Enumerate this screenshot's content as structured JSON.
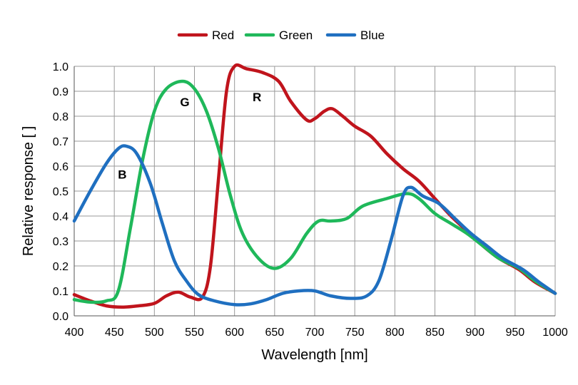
{
  "chart_data": {
    "type": "line",
    "title": "",
    "xlabel": "Wavelength [nm]",
    "ylabel": "Relative response [ ]",
    "xlim": [
      400,
      1000
    ],
    "ylim": [
      0,
      1.0
    ],
    "x_ticks": [
      "400",
      "450",
      "500",
      "550",
      "600",
      "650",
      "700",
      "750",
      "800",
      "850",
      "900",
      "950",
      "1000"
    ],
    "y_ticks": [
      "0.0",
      "0.1",
      "0.2",
      "0.3",
      "0.4",
      "0.5",
      "0.6",
      "0.7",
      "0.8",
      "0.9",
      "1.0"
    ],
    "grid": true,
    "legend_position": "top",
    "series": [
      {
        "name": "Red",
        "color": "#c0141c",
        "points": [
          [
            400,
            0.085
          ],
          [
            420,
            0.06
          ],
          [
            440,
            0.04
          ],
          [
            460,
            0.035
          ],
          [
            480,
            0.04
          ],
          [
            500,
            0.05
          ],
          [
            515,
            0.08
          ],
          [
            530,
            0.095
          ],
          [
            545,
            0.075
          ],
          [
            560,
            0.075
          ],
          [
            570,
            0.2
          ],
          [
            580,
            0.55
          ],
          [
            590,
            0.9
          ],
          [
            600,
            1.0
          ],
          [
            615,
            0.99
          ],
          [
            635,
            0.975
          ],
          [
            655,
            0.94
          ],
          [
            670,
            0.86
          ],
          [
            690,
            0.785
          ],
          [
            700,
            0.79
          ],
          [
            712,
            0.82
          ],
          [
            722,
            0.83
          ],
          [
            735,
            0.8
          ],
          [
            750,
            0.76
          ],
          [
            770,
            0.72
          ],
          [
            790,
            0.65
          ],
          [
            810,
            0.59
          ],
          [
            830,
            0.54
          ],
          [
            850,
            0.47
          ],
          [
            870,
            0.4
          ],
          [
            890,
            0.34
          ],
          [
            910,
            0.28
          ],
          [
            930,
            0.23
          ],
          [
            955,
            0.185
          ],
          [
            975,
            0.135
          ],
          [
            1000,
            0.09
          ]
        ]
      },
      {
        "name": "Green",
        "color": "#1fb85a",
        "points": [
          [
            400,
            0.065
          ],
          [
            420,
            0.055
          ],
          [
            440,
            0.06
          ],
          [
            455,
            0.1
          ],
          [
            470,
            0.35
          ],
          [
            485,
            0.62
          ],
          [
            500,
            0.82
          ],
          [
            515,
            0.91
          ],
          [
            535,
            0.94
          ],
          [
            550,
            0.91
          ],
          [
            565,
            0.82
          ],
          [
            580,
            0.67
          ],
          [
            595,
            0.48
          ],
          [
            610,
            0.33
          ],
          [
            630,
            0.23
          ],
          [
            650,
            0.19
          ],
          [
            670,
            0.23
          ],
          [
            690,
            0.33
          ],
          [
            705,
            0.38
          ],
          [
            720,
            0.38
          ],
          [
            740,
            0.39
          ],
          [
            760,
            0.44
          ],
          [
            790,
            0.47
          ],
          [
            815,
            0.49
          ],
          [
            830,
            0.47
          ],
          [
            850,
            0.41
          ],
          [
            870,
            0.37
          ],
          [
            890,
            0.33
          ],
          [
            910,
            0.28
          ],
          [
            930,
            0.23
          ],
          [
            955,
            0.19
          ],
          [
            975,
            0.14
          ],
          [
            1000,
            0.09
          ]
        ]
      },
      {
        "name": "Blue",
        "color": "#1f6fc0",
        "points": [
          [
            400,
            0.38
          ],
          [
            420,
            0.5
          ],
          [
            440,
            0.61
          ],
          [
            455,
            0.67
          ],
          [
            465,
            0.68
          ],
          [
            478,
            0.65
          ],
          [
            495,
            0.53
          ],
          [
            510,
            0.37
          ],
          [
            525,
            0.22
          ],
          [
            540,
            0.14
          ],
          [
            555,
            0.085
          ],
          [
            575,
            0.06
          ],
          [
            600,
            0.045
          ],
          [
            620,
            0.048
          ],
          [
            640,
            0.065
          ],
          [
            660,
            0.09
          ],
          [
            680,
            0.1
          ],
          [
            700,
            0.1
          ],
          [
            720,
            0.08
          ],
          [
            745,
            0.07
          ],
          [
            765,
            0.08
          ],
          [
            780,
            0.14
          ],
          [
            795,
            0.3
          ],
          [
            810,
            0.48
          ],
          [
            820,
            0.515
          ],
          [
            835,
            0.48
          ],
          [
            855,
            0.45
          ],
          [
            875,
            0.39
          ],
          [
            895,
            0.33
          ],
          [
            915,
            0.28
          ],
          [
            935,
            0.23
          ],
          [
            960,
            0.185
          ],
          [
            980,
            0.135
          ],
          [
            1000,
            0.09
          ]
        ]
      }
    ],
    "annotations": [
      {
        "text": "R",
        "x": 628,
        "y": 0.86
      },
      {
        "text": "G",
        "x": 538,
        "y": 0.84
      },
      {
        "text": "B",
        "x": 460,
        "y": 0.55
      }
    ]
  }
}
